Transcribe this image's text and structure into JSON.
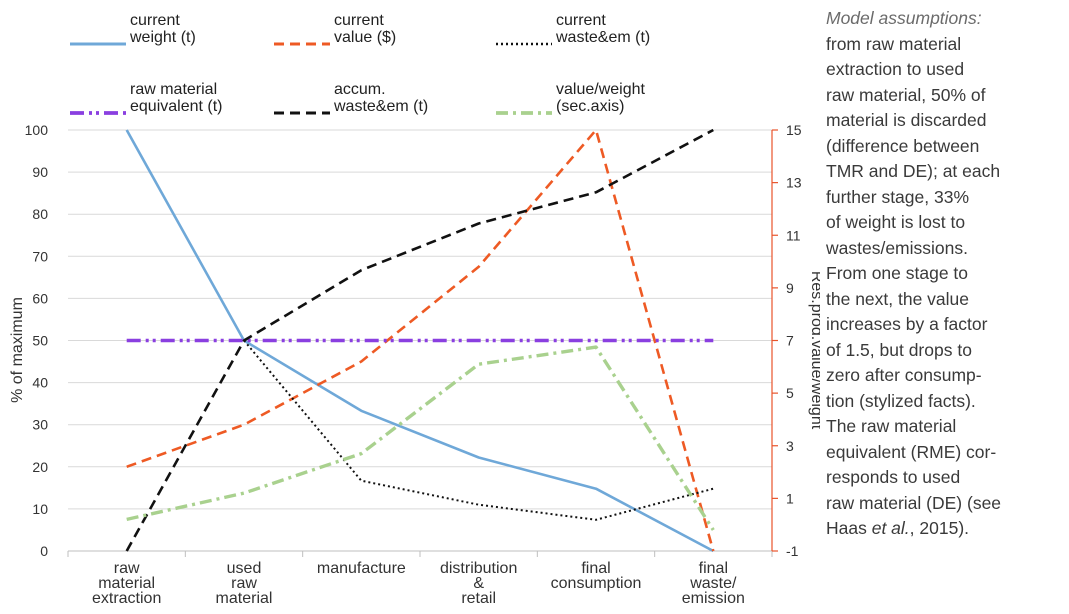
{
  "chart_data": {
    "type": "line",
    "categories": [
      [
        "raw",
        "material",
        "extraction"
      ],
      [
        "used",
        "raw",
        "material"
      ],
      [
        "manufacture"
      ],
      [
        "distribution",
        "&",
        "retail"
      ],
      [
        "final",
        "consumption"
      ],
      [
        "final",
        "waste/",
        "emission"
      ]
    ],
    "y_axis": {
      "label": "% of maximum",
      "range": [
        0,
        100
      ],
      "ticks": [
        "0",
        "10",
        "20",
        "30",
        "40",
        "50",
        "60",
        "70",
        "80",
        "90",
        "100"
      ]
    },
    "y2_axis": {
      "label": "Res.prod.value/weight",
      "range": [
        -1,
        15
      ],
      "ticks": [
        "-1",
        "1",
        "3",
        "5",
        "7",
        "9",
        "11",
        "13",
        "15"
      ],
      "color": "#E8542B"
    },
    "grid": "horizontal",
    "legend_position": "top",
    "series": [
      {
        "name": [
          "current",
          "weight (t)"
        ],
        "axis": "left",
        "color": "#6FA8D8",
        "style": "solid",
        "values": [
          100,
          50,
          33.3,
          22.2,
          14.8,
          0
        ]
      },
      {
        "name": [
          "current",
          "value ($)"
        ],
        "axis": "left",
        "color": "#EE5A24",
        "style": "dashed",
        "values": [
          20,
          30,
          45,
          67.5,
          100,
          0
        ]
      },
      {
        "name": [
          "current",
          "waste&em (t)"
        ],
        "axis": "left",
        "color": "#111111",
        "style": "dotted",
        "values": [
          null,
          50,
          16.7,
          11,
          7.4,
          14.8
        ]
      },
      {
        "name": [
          "raw material",
          "equivalent (t)"
        ],
        "axis": "left",
        "color": "#8A3FE0",
        "style": "dash-dot-dot",
        "values": [
          50,
          50,
          50,
          50,
          50,
          50
        ]
      },
      {
        "name": [
          "accum.",
          "waste&em (t)"
        ],
        "axis": "left",
        "color": "#111111",
        "style": "dashed",
        "values": [
          0,
          50,
          66.7,
          77.8,
          85.2,
          100
        ]
      },
      {
        "name": [
          "value/weight",
          "(sec.axis)"
        ],
        "axis": "right",
        "color": "#A9D18E",
        "style": "dash-dot",
        "values": [
          0.2,
          1.2,
          2.7,
          6.1,
          6.75,
          -0.2
        ]
      }
    ]
  },
  "note": {
    "heading": "Model assumptions:",
    "lines": [
      "from raw material",
      "extraction to used",
      "raw material, 50% of",
      "material is discarded",
      "(difference between",
      "TMR and DE); at each",
      "further stage, 33%",
      "of weight is lost to",
      "wastes/emissions.",
      "From one stage to",
      "the next, the value",
      "increases by a factor",
      "of 1.5, but drops to",
      "zero after consump-",
      "tion (stylized facts).",
      "The raw material",
      "equivalent (RME) cor-",
      "responds to used",
      "raw material (DE) (see",
      "Haas et al., 2015)."
    ]
  }
}
